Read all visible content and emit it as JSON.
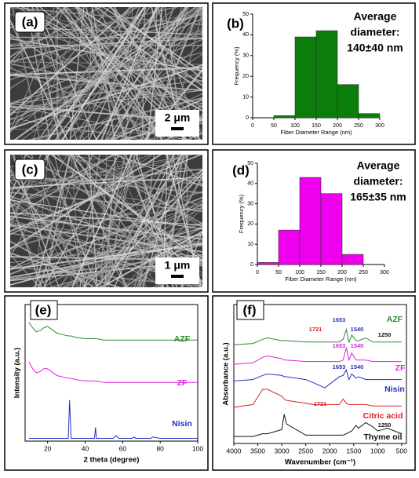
{
  "images": [
    {
      "panel": "(a)",
      "scale_bar": "2 μm"
    },
    {
      "panel": "(c)",
      "scale_bar": "1 μm"
    }
  ],
  "chart_data": [
    {
      "type": "histogram",
      "panel": "(b)",
      "annotation": [
        "Average",
        "diameter:",
        "140±40 nm"
      ],
      "xlabel": "Fiber Diameter Range (nm)",
      "ylabel": "Frequency (%)",
      "bins": [
        0,
        50,
        100,
        150,
        200,
        250,
        300
      ],
      "values": [
        0,
        1,
        39,
        42,
        16,
        2
      ],
      "color": "#0a7d0a",
      "xlim": [
        0,
        300
      ],
      "ylim": [
        0,
        50
      ],
      "xticks": [
        0,
        50,
        100,
        150,
        200,
        250,
        300
      ],
      "yticks": [
        0,
        10,
        20,
        30,
        40,
        50
      ]
    },
    {
      "type": "histogram",
      "panel": "(d)",
      "annotation": [
        "Average",
        "diameter:",
        "165±35 nm"
      ],
      "xlabel": "Fiber Diameter Range (nm)",
      "ylabel": "Frequency (%)",
      "bins": [
        0,
        50,
        100,
        150,
        200,
        250,
        300
      ],
      "values": [
        1,
        17,
        43,
        35,
        5,
        0
      ],
      "color": "#ee00ee",
      "xlim": [
        0,
        300
      ],
      "ylim": [
        0,
        50
      ],
      "xticks": [
        0,
        50,
        100,
        150,
        200,
        250,
        300
      ],
      "yticks": [
        0,
        10,
        20,
        30,
        40,
        50
      ]
    },
    {
      "type": "line",
      "panel": "(e)",
      "xlabel": "2 theta (degree)",
      "ylabel": "Intensity (a.u.)",
      "x": [
        10,
        12,
        14,
        16,
        18,
        20,
        22,
        25,
        28,
        31,
        31.7,
        32.5,
        35,
        40,
        45,
        45.5,
        46,
        50,
        55,
        56.5,
        58,
        60,
        65,
        66,
        67,
        70,
        75,
        76,
        80,
        90,
        100
      ],
      "xlim": [
        8,
        100
      ],
      "ylim": [
        0,
        10
      ],
      "xticks": [
        20,
        40,
        60,
        80,
        100
      ],
      "series": [
        {
          "name": "AZF",
          "color": "#2e8b2e",
          "values": [
            8.7,
            8.3,
            8.0,
            8.1,
            8.3,
            8.4,
            8.2,
            7.9,
            7.8,
            7.7,
            7.7,
            7.7,
            7.6,
            7.5,
            7.5,
            7.5,
            7.5,
            7.4,
            7.4,
            7.4,
            7.4,
            7.4,
            7.4,
            7.4,
            7.4,
            7.4,
            7.4,
            7.4,
            7.4,
            7.4,
            7.4
          ]
        },
        {
          "name": "ZF",
          "color": "#dd22dd",
          "values": [
            5.8,
            5.3,
            5.0,
            5.1,
            5.3,
            5.3,
            5.1,
            4.8,
            4.7,
            4.6,
            4.6,
            4.6,
            4.5,
            4.4,
            4.4,
            4.4,
            4.4,
            4.3,
            4.3,
            4.3,
            4.3,
            4.3,
            4.3,
            4.3,
            4.3,
            4.3,
            4.3,
            4.3,
            4.3,
            4.3,
            4.3
          ]
        },
        {
          "name": "Nisin",
          "color": "#2233bb",
          "values": [
            0.2,
            0.2,
            0.2,
            0.2,
            0.2,
            0.2,
            0.2,
            0.2,
            0.2,
            0.2,
            3.0,
            0.2,
            0.2,
            0.2,
            0.2,
            1.0,
            0.2,
            0.2,
            0.2,
            0.4,
            0.2,
            0.2,
            0.2,
            0.3,
            0.2,
            0.2,
            0.2,
            0.3,
            0.2,
            0.2,
            0.2
          ]
        }
      ]
    },
    {
      "type": "line",
      "panel": "(f)",
      "xlabel": "Wavenumber (cm⁻¹)",
      "ylabel": "Absorbance (a.u.)",
      "x": [
        4000,
        3600,
        3400,
        3300,
        3000,
        2950,
        2900,
        2500,
        2360,
        2100,
        1800,
        1721,
        1653,
        1600,
        1540,
        1450,
        1400,
        1250,
        1100,
        1000,
        900,
        800,
        500
      ],
      "xlim": [
        4000,
        400
      ],
      "ylim": [
        0,
        10
      ],
      "xticks": [
        4000,
        3500,
        3000,
        2500,
        2000,
        1500,
        1000,
        500
      ],
      "series": [
        {
          "name": "AZF",
          "color": "#2e8b2e",
          "values": [
            7.1,
            7.2,
            7.5,
            7.6,
            7.4,
            7.4,
            7.4,
            7.3,
            7.3,
            7.3,
            7.3,
            7.5,
            8.2,
            7.3,
            7.8,
            7.4,
            7.4,
            7.6,
            7.3,
            7.3,
            7.3,
            7.3,
            7.3
          ]
        },
        {
          "name": "ZF",
          "color": "#dd22dd",
          "values": [
            5.7,
            5.8,
            6.2,
            6.3,
            6.1,
            6.0,
            6.0,
            5.9,
            5.9,
            5.9,
            5.9,
            6.0,
            6.9,
            6.0,
            6.5,
            6.0,
            6.0,
            6.0,
            5.9,
            5.9,
            5.9,
            5.9,
            5.9
          ]
        },
        {
          "name": "Nisin",
          "color": "#2233bb",
          "values": [
            4.5,
            4.6,
            4.9,
            5.0,
            4.9,
            4.8,
            4.8,
            4.6,
            4.4,
            4.0,
            4.8,
            4.9,
            5.3,
            4.6,
            5.0,
            4.7,
            4.8,
            4.6,
            4.6,
            4.6,
            4.6,
            4.6,
            4.6
          ]
        },
        {
          "name": "Citric acid",
          "color": "#dd2222",
          "values": [
            2.6,
            2.8,
            3.9,
            3.9,
            3.4,
            3.2,
            3.1,
            2.9,
            2.8,
            2.8,
            2.8,
            3.2,
            2.9,
            2.8,
            2.8,
            2.8,
            2.8,
            2.8,
            2.7,
            2.7,
            2.7,
            2.7,
            2.7
          ]
        },
        {
          "name": "Thyme oil",
          "color": "#111111",
          "values": [
            0.5,
            0.5,
            0.7,
            0.7,
            1.0,
            2.1,
            1.4,
            0.6,
            0.6,
            0.6,
            0.6,
            0.6,
            0.7,
            0.8,
            0.9,
            1.3,
            1.1,
            1.5,
            1.2,
            0.9,
            1.0,
            1.1,
            0.7
          ]
        }
      ],
      "annotations": [
        {
          "text": "1653",
          "color": "#2233bb"
        },
        {
          "text": "1540",
          "color": "#2233bb"
        },
        {
          "text": "1721",
          "color": "#dd2222"
        },
        {
          "text": "1250",
          "color": "#111111"
        },
        {
          "text": "1653",
          "color": "#dd22dd"
        },
        {
          "text": "1540",
          "color": "#dd22dd"
        },
        {
          "text": "1653",
          "color": "#2233bb"
        },
        {
          "text": "1540",
          "color": "#2233bb"
        },
        {
          "text": "1721",
          "color": "#dd2222"
        },
        {
          "text": "1250",
          "color": "#111111"
        }
      ]
    }
  ]
}
